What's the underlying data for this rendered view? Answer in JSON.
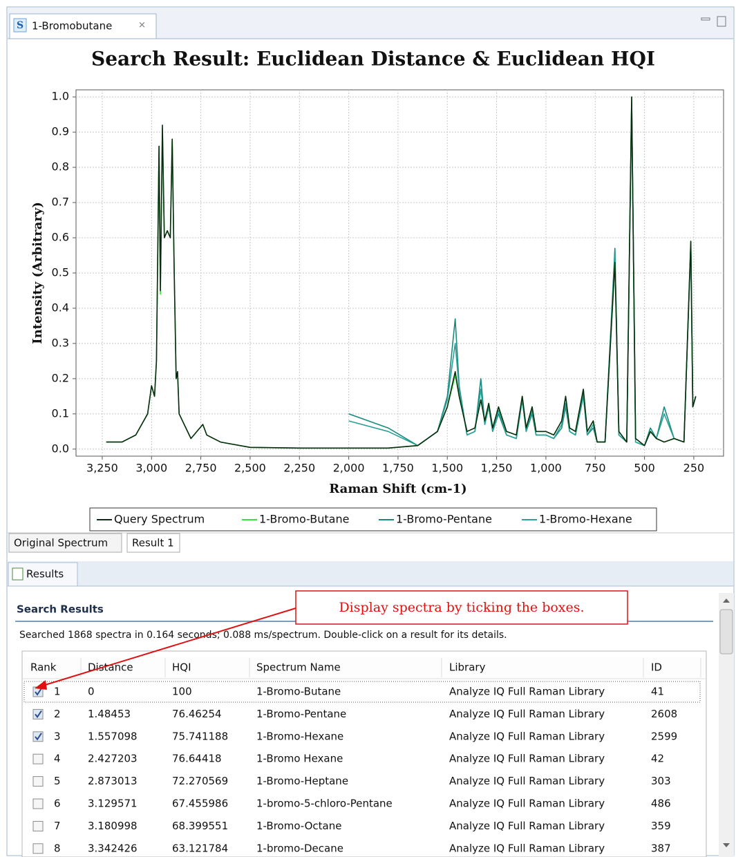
{
  "editor_tab": "1-Bromobutane",
  "chart_data": {
    "type": "line",
    "title": "Search Result: Euclidean Distance & Euclidean HQI",
    "x_label": "Raman Shift (cm-1)",
    "y_label": "Intensity (Arbitrary)",
    "x": [
      3230,
      3150,
      3080,
      3020,
      3000,
      2985,
      2975,
      2962,
      2955,
      2945,
      2935,
      2920,
      2905,
      2895,
      2885,
      2875,
      2868,
      2860,
      2800,
      2740,
      2720,
      2650,
      2500,
      2250,
      2000,
      1800,
      1650,
      1550,
      1500,
      1460,
      1440,
      1400,
      1360,
      1330,
      1310,
      1290,
      1270,
      1240,
      1200,
      1150,
      1120,
      1100,
      1070,
      1050,
      1000,
      960,
      920,
      900,
      880,
      850,
      810,
      790,
      760,
      740,
      700,
      650,
      630,
      590,
      565,
      545,
      500,
      470,
      440,
      400,
      350,
      300,
      265,
      255,
      240
    ],
    "series": [
      {
        "name": "Query Spectrum",
        "color": "#0a2a12",
        "values": [
          0.02,
          0.02,
          0.04,
          0.1,
          0.18,
          0.15,
          0.25,
          0.86,
          0.45,
          0.92,
          0.6,
          0.62,
          0.6,
          0.88,
          0.5,
          0.2,
          0.22,
          0.1,
          0.03,
          0.07,
          0.04,
          0.02,
          0.005,
          0.003,
          0.003,
          0.003,
          0.01,
          0.05,
          0.12,
          0.22,
          0.15,
          0.05,
          0.06,
          0.14,
          0.08,
          0.13,
          0.06,
          0.12,
          0.05,
          0.04,
          0.15,
          0.06,
          0.12,
          0.05,
          0.05,
          0.04,
          0.08,
          0.15,
          0.06,
          0.05,
          0.17,
          0.05,
          0.08,
          0.02,
          0.02,
          0.53,
          0.05,
          0.02,
          1.0,
          0.03,
          0.01,
          0.05,
          0.03,
          0.02,
          0.03,
          0.02,
          0.59,
          0.12,
          0.15
        ]
      },
      {
        "name": "1-Bromo-Butane",
        "color": "#33e633",
        "values": [
          0.02,
          0.02,
          0.04,
          0.1,
          0.18,
          0.15,
          0.25,
          0.86,
          0.44,
          0.91,
          0.6,
          0.62,
          0.6,
          0.88,
          0.5,
          0.2,
          0.22,
          0.1,
          0.03,
          0.07,
          0.04,
          0.02,
          0.005,
          0.003,
          0.003,
          0.003,
          0.01,
          0.05,
          0.12,
          0.21,
          0.15,
          0.05,
          0.06,
          0.14,
          0.08,
          0.13,
          0.06,
          0.12,
          0.05,
          0.04,
          0.15,
          0.06,
          0.12,
          0.05,
          0.05,
          0.04,
          0.08,
          0.15,
          0.06,
          0.05,
          0.17,
          0.05,
          0.08,
          0.02,
          0.02,
          0.53,
          0.05,
          0.02,
          1.0,
          0.03,
          0.01,
          0.05,
          0.03,
          0.02,
          0.03,
          0.02,
          0.59,
          0.12,
          0.15
        ]
      },
      {
        "name": "1-Bromo-Pentane",
        "color": "#1a8a7e",
        "values": [
          null,
          null,
          null,
          null,
          null,
          null,
          null,
          null,
          null,
          null,
          null,
          null,
          null,
          null,
          null,
          null,
          null,
          null,
          null,
          null,
          null,
          null,
          null,
          null,
          0.1,
          0.06,
          0.01,
          0.05,
          0.15,
          0.37,
          0.18,
          0.04,
          0.05,
          0.2,
          0.07,
          0.12,
          0.05,
          0.1,
          0.04,
          0.03,
          0.14,
          0.05,
          0.1,
          0.04,
          0.04,
          0.03,
          0.06,
          0.12,
          0.05,
          0.04,
          0.15,
          0.04,
          0.06,
          0.02,
          0.02,
          0.57,
          0.04,
          0.02,
          0.98,
          0.02,
          0.01,
          0.06,
          0.03,
          0.12,
          0.03,
          0.02,
          0.58,
          0.12,
          0.15
        ]
      },
      {
        "name": "1-Bromo-Hexane",
        "color": "#2aa096",
        "values": [
          null,
          null,
          null,
          null,
          null,
          null,
          null,
          null,
          null,
          null,
          null,
          null,
          null,
          null,
          null,
          null,
          null,
          null,
          null,
          null,
          null,
          null,
          null,
          null,
          0.08,
          0.05,
          0.01,
          0.05,
          0.14,
          0.3,
          0.17,
          0.04,
          0.05,
          0.17,
          0.07,
          0.12,
          0.05,
          0.11,
          0.04,
          0.03,
          0.14,
          0.05,
          0.11,
          0.04,
          0.04,
          0.03,
          0.07,
          0.13,
          0.05,
          0.04,
          0.16,
          0.04,
          0.07,
          0.02,
          0.02,
          0.55,
          0.04,
          0.02,
          0.99,
          0.02,
          0.01,
          0.05,
          0.03,
          0.1,
          0.03,
          0.02,
          0.58,
          0.12,
          0.15
        ]
      }
    ],
    "xlim": [
      3383,
      99
    ],
    "ylim": [
      -0.02,
      1.02
    ],
    "xticks": [
      {
        "value": 3250,
        "label": "3,250"
      },
      {
        "value": 3000,
        "label": "3,000"
      },
      {
        "value": 2750,
        "label": "2,750"
      },
      {
        "value": 2500,
        "label": "2,500"
      },
      {
        "value": 2250,
        "label": "2,250"
      },
      {
        "value": 2000,
        "label": "2,000"
      },
      {
        "value": 1750,
        "label": "1,750"
      },
      {
        "value": 1500,
        "label": "1,500"
      },
      {
        "value": 1250,
        "label": "1,250"
      },
      {
        "value": 1000,
        "label": "1,000"
      },
      750,
      500,
      250
    ],
    "yticks": [
      {
        "value": 0,
        "label": "0.0"
      },
      0.1,
      0.2,
      0.3,
      0.4,
      0.5,
      0.6,
      0.7,
      0.8,
      0.9,
      {
        "value": 1,
        "label": "1.0"
      }
    ],
    "grid": true,
    "legend": "bottom"
  },
  "chart_tabs": [
    "Original Spectrum",
    "Result 1"
  ],
  "panel_title": "Results",
  "section_title": "Search Results",
  "summary": "Searched 1868 spectra in 0.164 seconds; 0.088 ms/spectrum. Double-click on a result for its details.",
  "annotation": "Display spectra by ticking the boxes.",
  "table": {
    "columns": [
      "Rank",
      "Distance",
      "HQI",
      "Spectrum Name",
      "Library",
      "ID"
    ],
    "rows": [
      [
        "1",
        "0",
        "100",
        "1-Bromo-Butane",
        "Analyze IQ Full Raman Library",
        "41"
      ],
      [
        "2",
        "1.48453",
        "76.46254",
        "1-Bromo-Pentane",
        "Analyze IQ Full Raman Library",
        "2608"
      ],
      [
        "3",
        "1.557098",
        "75.741188",
        "1-Bromo-Hexane",
        "Analyze IQ Full Raman Library",
        "2599"
      ],
      [
        "4",
        "2.427203",
        "76.64418",
        "1-Bromo Hexane",
        "Analyze IQ Full Raman Library",
        "42"
      ],
      [
        "5",
        "2.873013",
        "72.270569",
        "1-Bromo-Heptane",
        "Analyze IQ Full Raman Library",
        "303"
      ],
      [
        "6",
        "3.129571",
        "67.455986",
        "1-bromo-5-chloro-Pentane",
        "Analyze IQ Full Raman Library",
        "486"
      ],
      [
        "7",
        "3.180998",
        "68.399551",
        "1-Bromo-Octane",
        "Analyze IQ Full Raman Library",
        "359"
      ],
      [
        "8",
        "3.342426",
        "63.121784",
        "1-bromo-Decane",
        "Analyze IQ Full Raman Library",
        "387"
      ]
    ],
    "checked": [
      true,
      true,
      true,
      false,
      false,
      false,
      false,
      false
    ]
  }
}
